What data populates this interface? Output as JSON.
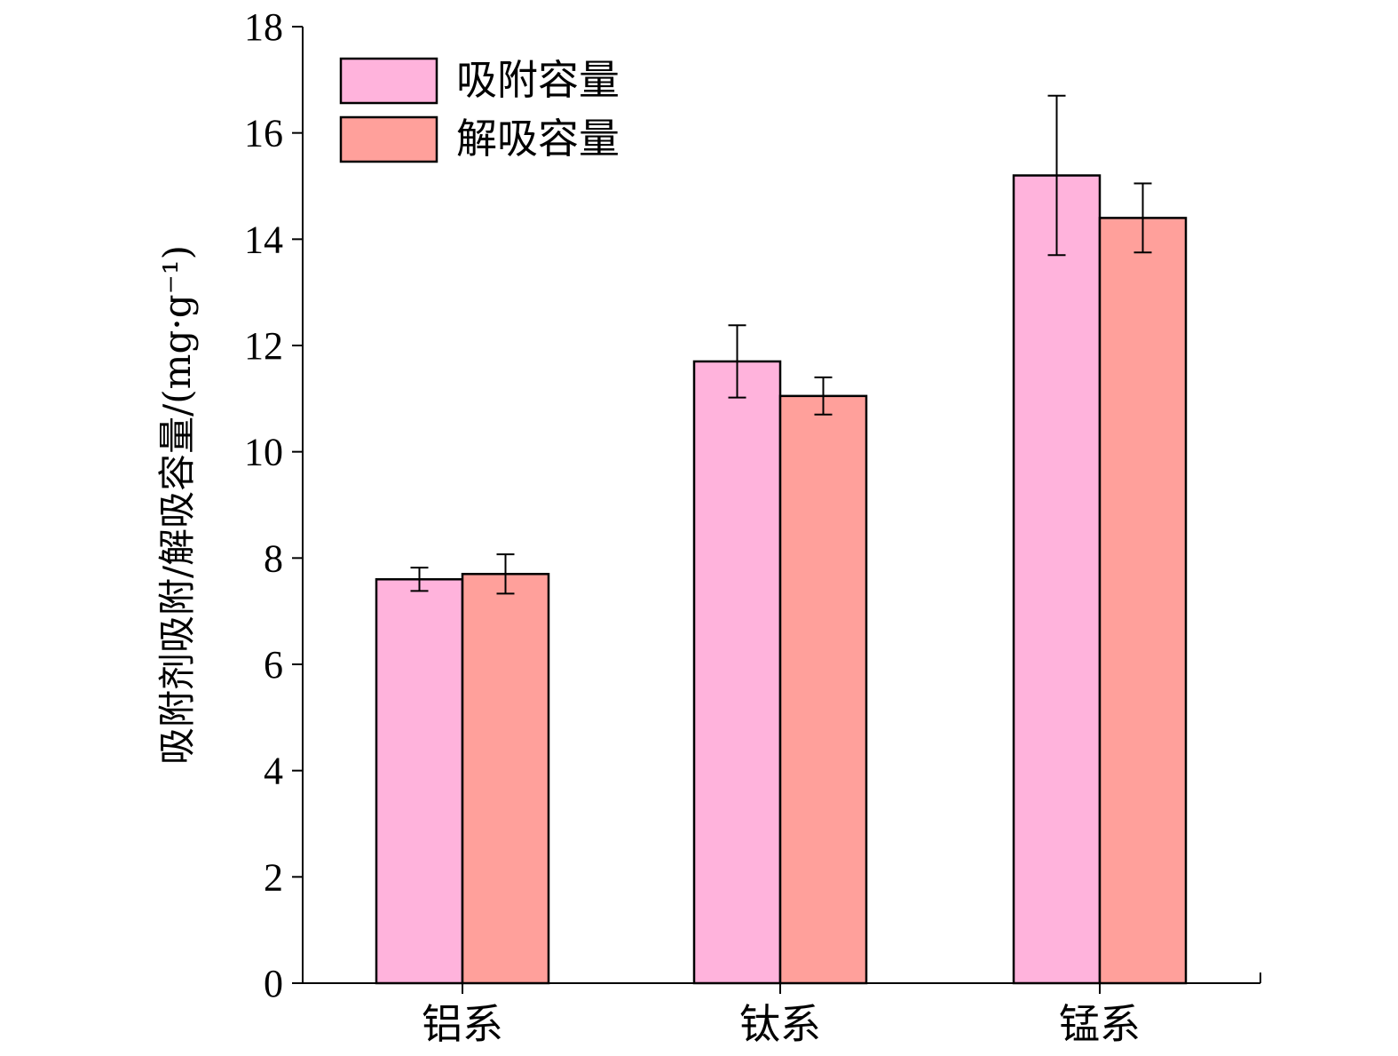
{
  "chart_data": {
    "type": "bar",
    "title": "",
    "xlabel": "",
    "ylabel": "吸附剂吸附/解吸容量/(mg·g⁻¹)",
    "categories": [
      "铝系",
      "钛系",
      "锰系"
    ],
    "ylim": [
      0,
      18
    ],
    "yticks": [
      0,
      2,
      4,
      6,
      8,
      10,
      12,
      14,
      16,
      18
    ],
    "grid": false,
    "legend_position": "top-left",
    "series": [
      {
        "name": "吸附容量",
        "color": "#ffb3dc",
        "values": [
          7.6,
          11.7,
          15.2
        ],
        "errors": [
          0.22,
          0.68,
          1.5
        ]
      },
      {
        "name": "解吸容量",
        "color": "#ffa09b",
        "values": [
          7.7,
          11.05,
          14.4
        ],
        "errors": [
          0.37,
          0.35,
          0.65
        ]
      }
    ]
  }
}
